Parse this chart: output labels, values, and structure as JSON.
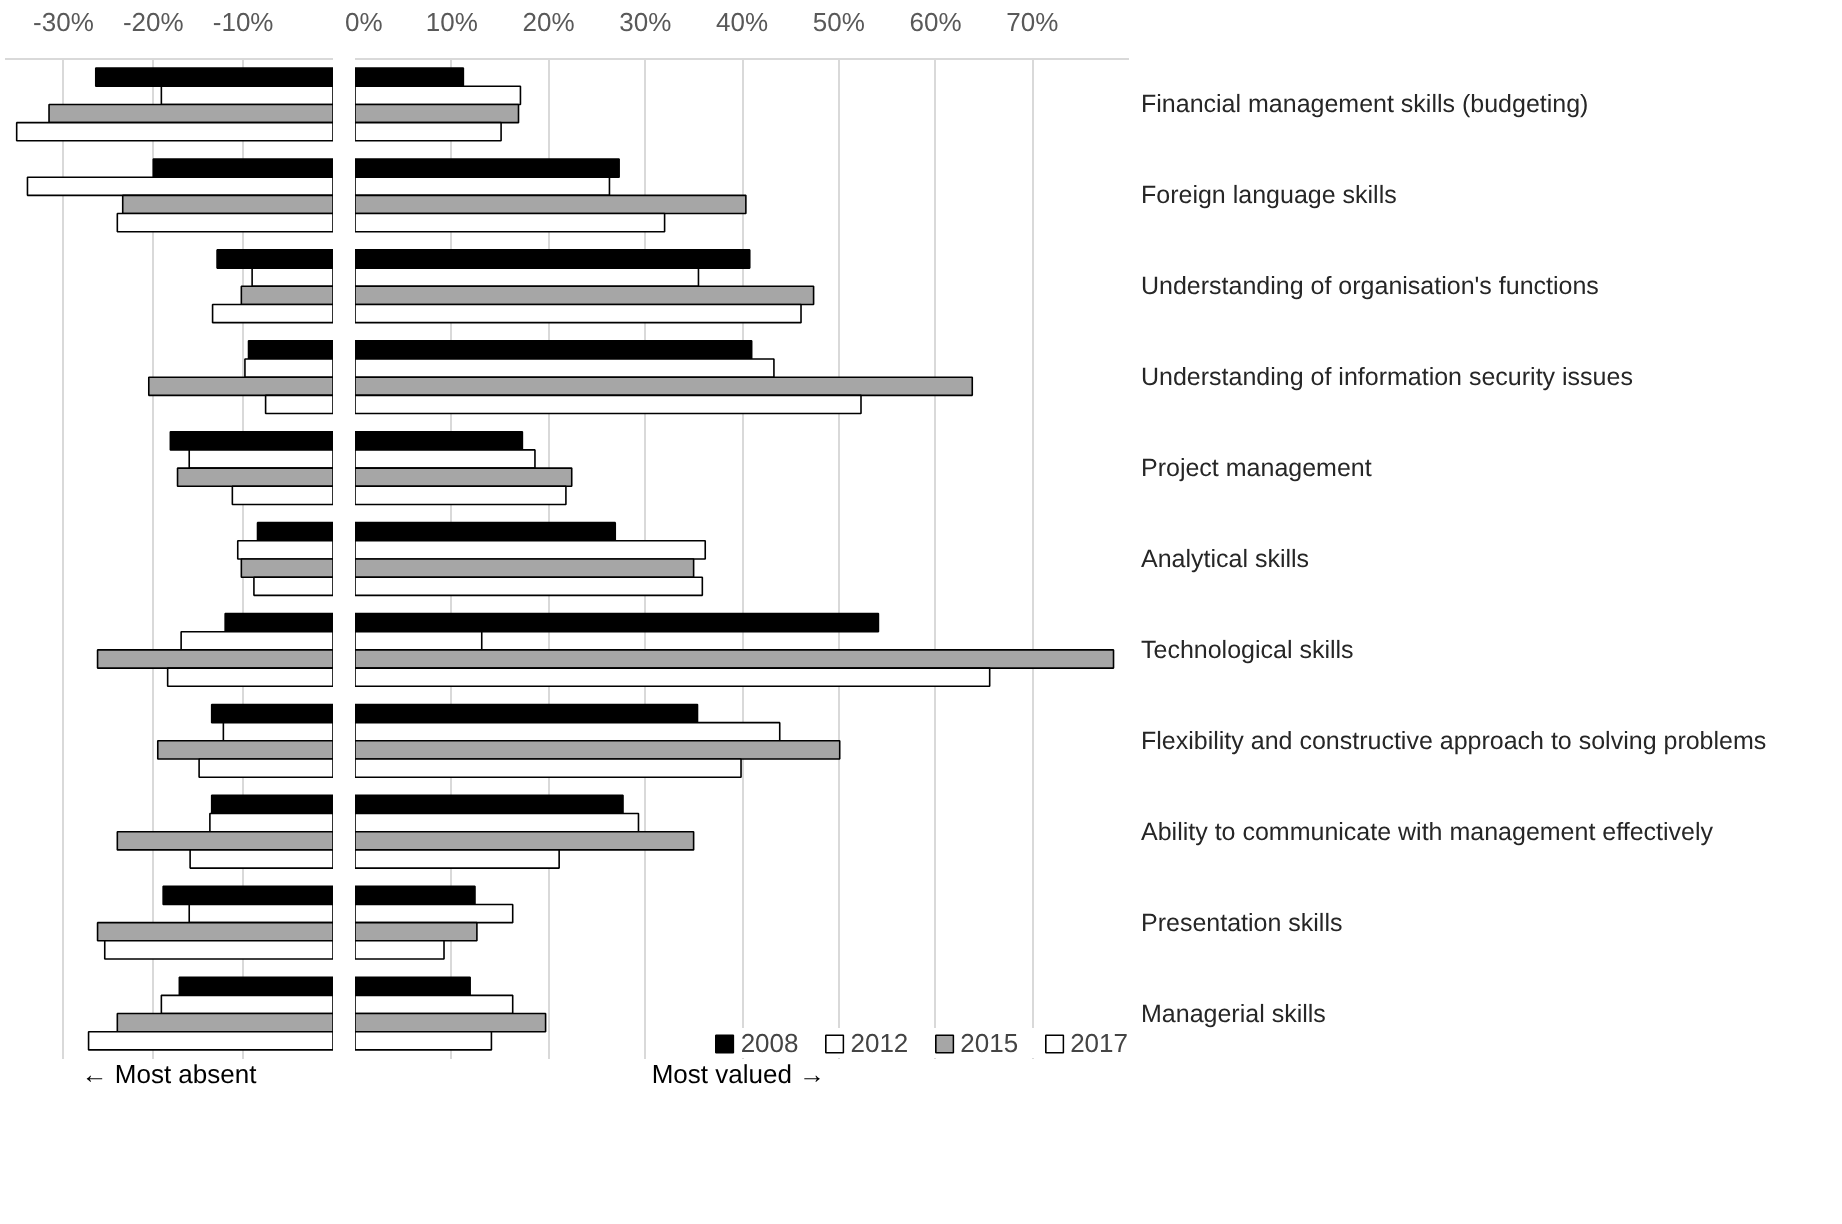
{
  "chart_data": [
    {
      "type": "bar",
      "orientation": "horizontal",
      "xlabel": "← Most absent",
      "grid": "x",
      "categories": [
        null,
        null,
        null,
        null,
        null,
        null,
        null,
        null,
        null,
        null,
        null
      ],
      "xlim": [
        -36.5,
        0
      ],
      "xticks": [
        {
          "value": -30,
          "label": "-30%"
        },
        {
          "value": -20,
          "label": "-20%"
        },
        {
          "value": -10,
          "label": "-10%"
        }
      ],
      "series": [
        {
          "color": "#000000",
          "values": [
            -26.4,
            -20.0,
            -12.9,
            -9.4,
            -18.1,
            -8.4,
            -12.0,
            -13.5,
            -13.5,
            -18.9,
            -17.1
          ]
        },
        {
          "color": "#ffffff",
          "values": [
            -19.1,
            -34.0,
            -9.0,
            -9.8,
            -16.0,
            -10.6,
            -16.9,
            -12.2,
            -13.7,
            -16.0,
            -19.1
          ]
        },
        {
          "color": "#a6a6a6",
          "values": [
            -31.6,
            -23.4,
            -10.2,
            -20.5,
            -17.3,
            -10.2,
            -26.2,
            -19.5,
            -24.0,
            -26.2,
            -24.0
          ]
        },
        {
          "color": "#ffffff",
          "values": [
            -35.2,
            -24.0,
            -13.4,
            -7.5,
            -11.2,
            -8.8,
            -18.4,
            -14.9,
            -15.9,
            -25.4,
            -27.2
          ]
        }
      ]
    },
    {
      "type": "bar",
      "orientation": "horizontal",
      "xlabel": "Most  valued →",
      "grid": "x",
      "legend": "bottom",
      "categories": [
        "Financial management skills (budgeting)",
        "Foreign language skills",
        "Understanding of organisation's functions",
        "Understanding of information security issues",
        "Project management",
        "Analytical skills",
        "Technological skills",
        "Flexibility and constructive approach to solving problems",
        "Ability to communicate with management effectively",
        "Presentation skills",
        "Managerial skills"
      ],
      "xlim": [
        0,
        80
      ],
      "xticks": [
        {
          "value": 0,
          "label": "0%"
        },
        {
          "value": 10,
          "label": "10%"
        },
        {
          "value": 20,
          "label": "20%"
        },
        {
          "value": 30,
          "label": "30%"
        },
        {
          "value": 40,
          "label": "40%"
        },
        {
          "value": 50,
          "label": "50%"
        },
        {
          "value": 60,
          "label": "60%"
        },
        {
          "value": 70,
          "label": "70%"
        }
      ],
      "series": [
        {
          "name": "2008",
          "color": "#000000",
          "values": [
            11.2,
            27.3,
            40.8,
            41.0,
            17.3,
            26.9,
            54.1,
            35.4,
            27.7,
            12.4,
            11.9
          ]
        },
        {
          "name": "2012",
          "color": "#ffffff",
          "values": [
            17.1,
            26.3,
            35.5,
            43.3,
            18.6,
            36.2,
            13.1,
            43.9,
            29.3,
            16.3,
            16.3
          ]
        },
        {
          "name": "2015",
          "color": "#a6a6a6",
          "values": [
            16.9,
            40.4,
            47.4,
            63.8,
            22.4,
            35.0,
            78.4,
            50.1,
            35.0,
            12.6,
            19.7
          ]
        },
        {
          "name": "2017",
          "color": "#ffffff",
          "values": [
            15.1,
            32.0,
            46.1,
            52.3,
            21.8,
            35.9,
            65.6,
            39.9,
            21.1,
            9.2,
            14.1
          ]
        }
      ]
    }
  ]
}
